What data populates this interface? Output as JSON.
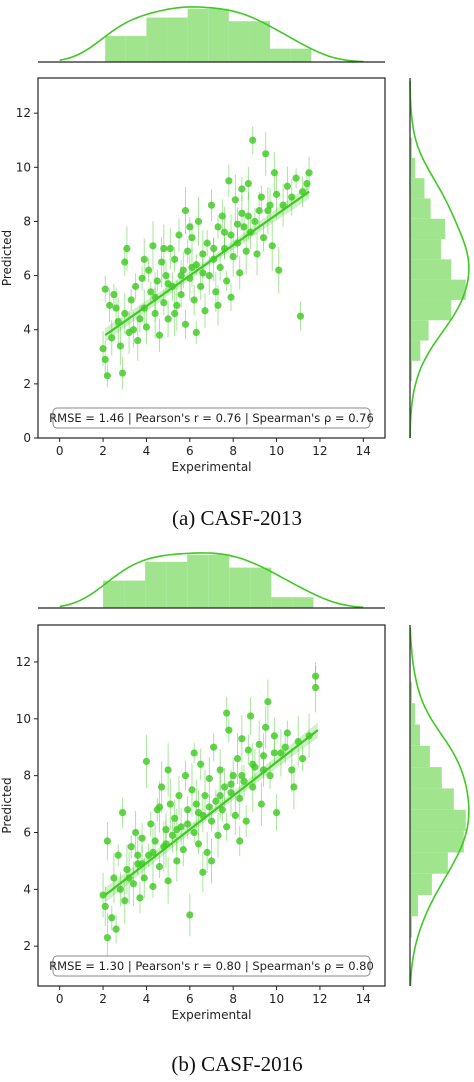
{
  "colors": {
    "accent": "#3fc923",
    "hist_fill": "#8fe07a",
    "axis": "#222222",
    "box_edge": "#888888"
  },
  "chart_data": [
    {
      "type": "scatter",
      "subtype": "jointplot-with-regression-and-marginal-histograms",
      "caption": "(a)  CASF-2013",
      "xlabel": "Experimental",
      "ylabel": "Predicted",
      "xlim": [
        -1,
        15
      ],
      "ylim": [
        0,
        13.3
      ],
      "xticks": [
        0,
        2,
        4,
        6,
        8,
        10,
        12,
        14
      ],
      "yticks": [
        0,
        2,
        4,
        6,
        8,
        10,
        12
      ],
      "grid": false,
      "stats_label": "RMSE = 1.46 | Pearson's r = 0.76 | Spearman's ρ = 0.76",
      "regression": {
        "x": [
          2.1,
          11.5
        ],
        "y": [
          3.8,
          9.1
        ]
      },
      "x_hist": {
        "bin_edges": [
          2.1,
          3.05,
          4.0,
          4.95,
          5.9,
          6.85,
          7.8,
          8.75,
          9.7,
          10.65,
          11.6
        ],
        "counts": [
          35,
          35,
          60,
          60,
          72,
          72,
          55,
          55,
          18,
          18
        ]
      },
      "y_hist": {
        "bin_edges": [
          2.1,
          2.85,
          3.6,
          4.35,
          5.1,
          5.85,
          6.6,
          7.35,
          8.1,
          8.85,
          9.6,
          10.35,
          11.1
        ],
        "counts": [
          2,
          10,
          18,
          40,
          54,
          40,
          30,
          34,
          20,
          14,
          5,
          2
        ]
      },
      "points": [
        {
          "x": 2.0,
          "y": 3.3
        },
        {
          "x": 2.1,
          "y": 2.9
        },
        {
          "x": 2.2,
          "y": 2.3
        },
        {
          "x": 2.1,
          "y": 5.5
        },
        {
          "x": 2.3,
          "y": 4.9
        },
        {
          "x": 2.4,
          "y": 3.7
        },
        {
          "x": 2.5,
          "y": 5.3
        },
        {
          "x": 2.7,
          "y": 4.3
        },
        {
          "x": 2.8,
          "y": 3.4
        },
        {
          "x": 2.9,
          "y": 2.4
        },
        {
          "x": 3.0,
          "y": 6.5
        },
        {
          "x": 3.1,
          "y": 7.0
        },
        {
          "x": 3.0,
          "y": 4.6
        },
        {
          "x": 3.3,
          "y": 5.1
        },
        {
          "x": 3.4,
          "y": 4.0
        },
        {
          "x": 3.5,
          "y": 5.6
        },
        {
          "x": 3.6,
          "y": 3.6
        },
        {
          "x": 3.8,
          "y": 5.9
        },
        {
          "x": 3.9,
          "y": 4.8
        },
        {
          "x": 4.0,
          "y": 4.1
        },
        {
          "x": 4.1,
          "y": 6.2
        },
        {
          "x": 4.2,
          "y": 5.4
        },
        {
          "x": 4.3,
          "y": 7.1
        },
        {
          "x": 4.4,
          "y": 4.6
        },
        {
          "x": 4.5,
          "y": 5.8
        },
        {
          "x": 4.6,
          "y": 3.8
        },
        {
          "x": 4.7,
          "y": 6.5
        },
        {
          "x": 4.8,
          "y": 5.0
        },
        {
          "x": 4.9,
          "y": 6.0
        },
        {
          "x": 5.0,
          "y": 4.4
        },
        {
          "x": 5.1,
          "y": 7.0
        },
        {
          "x": 5.2,
          "y": 5.6
        },
        {
          "x": 5.3,
          "y": 6.6
        },
        {
          "x": 5.4,
          "y": 4.9
        },
        {
          "x": 5.5,
          "y": 7.5
        },
        {
          "x": 5.6,
          "y": 5.3
        },
        {
          "x": 5.7,
          "y": 6.2
        },
        {
          "x": 5.8,
          "y": 4.2
        },
        {
          "x": 5.9,
          "y": 6.9
        },
        {
          "x": 6.0,
          "y": 5.9
        },
        {
          "x": 6.1,
          "y": 7.4
        },
        {
          "x": 6.2,
          "y": 5.1
        },
        {
          "x": 6.3,
          "y": 6.4
        },
        {
          "x": 6.4,
          "y": 8.0
        },
        {
          "x": 6.5,
          "y": 5.6
        },
        {
          "x": 6.6,
          "y": 6.8
        },
        {
          "x": 6.7,
          "y": 4.7
        },
        {
          "x": 6.8,
          "y": 7.2
        },
        {
          "x": 6.9,
          "y": 6.0
        },
        {
          "x": 7.0,
          "y": 8.6
        },
        {
          "x": 7.1,
          "y": 6.6
        },
        {
          "x": 7.2,
          "y": 5.4
        },
        {
          "x": 7.3,
          "y": 7.8
        },
        {
          "x": 7.4,
          "y": 6.3
        },
        {
          "x": 7.5,
          "y": 8.2
        },
        {
          "x": 7.6,
          "y": 7.0
        },
        {
          "x": 7.7,
          "y": 5.8
        },
        {
          "x": 7.8,
          "y": 9.5
        },
        {
          "x": 7.9,
          "y": 7.5
        },
        {
          "x": 8.0,
          "y": 6.7
        },
        {
          "x": 8.1,
          "y": 8.8
        },
        {
          "x": 8.2,
          "y": 7.2
        },
        {
          "x": 8.3,
          "y": 6.1
        },
        {
          "x": 8.4,
          "y": 8.3
        },
        {
          "x": 8.5,
          "y": 7.8
        },
        {
          "x": 8.6,
          "y": 6.9
        },
        {
          "x": 8.7,
          "y": 9.4
        },
        {
          "x": 8.8,
          "y": 7.6
        },
        {
          "x": 8.9,
          "y": 11.0
        },
        {
          "x": 9.0,
          "y": 8.0
        },
        {
          "x": 9.1,
          "y": 6.8
        },
        {
          "x": 9.3,
          "y": 8.9
        },
        {
          "x": 9.4,
          "y": 7.4
        },
        {
          "x": 9.5,
          "y": 10.5
        },
        {
          "x": 9.6,
          "y": 8.4
        },
        {
          "x": 9.8,
          "y": 7.1
        },
        {
          "x": 10.0,
          "y": 9.0
        },
        {
          "x": 10.1,
          "y": 6.2
        },
        {
          "x": 10.3,
          "y": 8.6
        },
        {
          "x": 10.5,
          "y": 9.3
        },
        {
          "x": 10.7,
          "y": 8.9
        },
        {
          "x": 10.9,
          "y": 9.6
        },
        {
          "x": 11.1,
          "y": 4.5
        },
        {
          "x": 11.2,
          "y": 9.1
        },
        {
          "x": 11.4,
          "y": 9.4
        },
        {
          "x": 11.5,
          "y": 9.8
        },
        {
          "x": 2.6,
          "y": 4.8
        },
        {
          "x": 3.2,
          "y": 3.9
        },
        {
          "x": 3.7,
          "y": 4.4
        },
        {
          "x": 4.4,
          "y": 5.2
        },
        {
          "x": 5.0,
          "y": 5.7
        },
        {
          "x": 5.6,
          "y": 6.0
        },
        {
          "x": 6.1,
          "y": 6.3
        },
        {
          "x": 6.6,
          "y": 6.1
        },
        {
          "x": 7.1,
          "y": 7.0
        },
        {
          "x": 7.6,
          "y": 7.6
        },
        {
          "x": 8.2,
          "y": 7.9
        },
        {
          "x": 8.7,
          "y": 8.2
        },
        {
          "x": 9.2,
          "y": 8.4
        },
        {
          "x": 9.7,
          "y": 8.6
        },
        {
          "x": 6.3,
          "y": 3.9
        },
        {
          "x": 5.3,
          "y": 4.6
        },
        {
          "x": 4.8,
          "y": 7.0
        },
        {
          "x": 7.9,
          "y": 5.2
        },
        {
          "x": 6.0,
          "y": 7.8
        },
        {
          "x": 8.4,
          "y": 9.2
        },
        {
          "x": 3.9,
          "y": 6.6
        },
        {
          "x": 9.9,
          "y": 9.8
        },
        {
          "x": 7.3,
          "y": 4.9
        },
        {
          "x": 5.8,
          "y": 8.4
        }
      ]
    },
    {
      "type": "scatter",
      "subtype": "jointplot-with-regression-and-marginal-histograms",
      "caption": "(b)  CASF-2016",
      "xlabel": "Experimental",
      "ylabel": "Predicted",
      "xlim": [
        -1,
        15
      ],
      "ylim": [
        0.6,
        13.3
      ],
      "xticks": [
        0,
        2,
        4,
        6,
        8,
        10,
        12,
        14
      ],
      "yticks": [
        2,
        4,
        6,
        8,
        10,
        12
      ],
      "grid": false,
      "stats_label": "RMSE = 1.30 | Pearson's r = 0.80 | Spearman's ρ = 0.80",
      "regression": {
        "x": [
          2.1,
          11.9
        ],
        "y": [
          3.8,
          9.6
        ]
      },
      "x_hist": {
        "bin_edges": [
          2.0,
          2.97,
          3.94,
          4.91,
          5.88,
          6.85,
          7.82,
          8.79,
          9.76,
          10.73,
          11.7
        ],
        "counts": [
          38,
          38,
          64,
          64,
          74,
          74,
          56,
          56,
          15,
          15
        ]
      },
      "y_hist": {
        "bin_edges": [
          2.3,
          3.05,
          3.8,
          4.55,
          5.3,
          6.05,
          6.8,
          7.55,
          8.3,
          9.05,
          9.8,
          10.55,
          11.3
        ],
        "counts": [
          2,
          8,
          22,
          38,
          54,
          56,
          44,
          32,
          20,
          10,
          5,
          2
        ]
      },
      "points": [
        {
          "x": 2.0,
          "y": 3.8
        },
        {
          "x": 2.1,
          "y": 3.4
        },
        {
          "x": 2.2,
          "y": 2.3
        },
        {
          "x": 2.2,
          "y": 5.7
        },
        {
          "x": 2.4,
          "y": 3.0
        },
        {
          "x": 2.5,
          "y": 4.4
        },
        {
          "x": 2.6,
          "y": 2.6
        },
        {
          "x": 2.7,
          "y": 5.2
        },
        {
          "x": 2.8,
          "y": 4.0
        },
        {
          "x": 2.9,
          "y": 6.7
        },
        {
          "x": 3.0,
          "y": 3.6
        },
        {
          "x": 3.1,
          "y": 4.7
        },
        {
          "x": 3.3,
          "y": 5.5
        },
        {
          "x": 3.4,
          "y": 4.2
        },
        {
          "x": 3.5,
          "y": 6.0
        },
        {
          "x": 3.6,
          "y": 4.9
        },
        {
          "x": 3.7,
          "y": 3.7
        },
        {
          "x": 3.8,
          "y": 5.8
        },
        {
          "x": 3.9,
          "y": 4.4
        },
        {
          "x": 4.0,
          "y": 8.5
        },
        {
          "x": 4.1,
          "y": 5.2
        },
        {
          "x": 4.2,
          "y": 6.3
        },
        {
          "x": 4.3,
          "y": 4.1
        },
        {
          "x": 4.4,
          "y": 5.7
        },
        {
          "x": 4.5,
          "y": 6.8
        },
        {
          "x": 4.6,
          "y": 4.8
        },
        {
          "x": 4.7,
          "y": 7.6
        },
        {
          "x": 4.8,
          "y": 5.5
        },
        {
          "x": 4.9,
          "y": 6.1
        },
        {
          "x": 5.0,
          "y": 4.3
        },
        {
          "x": 5.1,
          "y": 7.0
        },
        {
          "x": 5.2,
          "y": 5.9
        },
        {
          "x": 5.3,
          "y": 6.5
        },
        {
          "x": 5.4,
          "y": 5.0
        },
        {
          "x": 5.5,
          "y": 7.3
        },
        {
          "x": 5.6,
          "y": 6.2
        },
        {
          "x": 5.7,
          "y": 5.4
        },
        {
          "x": 5.8,
          "y": 8.0
        },
        {
          "x": 5.9,
          "y": 6.8
        },
        {
          "x": 6.0,
          "y": 3.1
        },
        {
          "x": 6.1,
          "y": 7.5
        },
        {
          "x": 6.2,
          "y": 6.0
        },
        {
          "x": 6.3,
          "y": 7.0
        },
        {
          "x": 6.4,
          "y": 5.6
        },
        {
          "x": 6.5,
          "y": 8.4
        },
        {
          "x": 6.6,
          "y": 6.6
        },
        {
          "x": 6.7,
          "y": 7.3
        },
        {
          "x": 6.8,
          "y": 5.3
        },
        {
          "x": 6.9,
          "y": 7.9
        },
        {
          "x": 7.0,
          "y": 6.4
        },
        {
          "x": 7.1,
          "y": 9.0
        },
        {
          "x": 7.2,
          "y": 7.1
        },
        {
          "x": 7.3,
          "y": 5.9
        },
        {
          "x": 7.4,
          "y": 8.2
        },
        {
          "x": 7.5,
          "y": 6.8
        },
        {
          "x": 7.6,
          "y": 7.6
        },
        {
          "x": 7.7,
          "y": 6.2
        },
        {
          "x": 7.8,
          "y": 9.6
        },
        {
          "x": 7.9,
          "y": 7.4
        },
        {
          "x": 8.0,
          "y": 8.0
        },
        {
          "x": 8.1,
          "y": 6.6
        },
        {
          "x": 8.2,
          "y": 8.6
        },
        {
          "x": 8.3,
          "y": 7.2
        },
        {
          "x": 8.4,
          "y": 9.3
        },
        {
          "x": 8.5,
          "y": 7.8
        },
        {
          "x": 8.6,
          "y": 6.4
        },
        {
          "x": 8.7,
          "y": 8.9
        },
        {
          "x": 8.8,
          "y": 10.1
        },
        {
          "x": 8.9,
          "y": 7.6
        },
        {
          "x": 9.0,
          "y": 8.3
        },
        {
          "x": 9.2,
          "y": 9.1
        },
        {
          "x": 9.3,
          "y": 7.0
        },
        {
          "x": 9.4,
          "y": 8.7
        },
        {
          "x": 9.5,
          "y": 9.7
        },
        {
          "x": 9.7,
          "y": 8.0
        },
        {
          "x": 9.9,
          "y": 9.4
        },
        {
          "x": 10.0,
          "y": 6.7
        },
        {
          "x": 10.2,
          "y": 8.8
        },
        {
          "x": 10.5,
          "y": 9.5
        },
        {
          "x": 10.7,
          "y": 8.2
        },
        {
          "x": 11.0,
          "y": 9.2
        },
        {
          "x": 11.2,
          "y": 8.6
        },
        {
          "x": 11.5,
          "y": 9.4
        },
        {
          "x": 11.8,
          "y": 11.5
        },
        {
          "x": 11.8,
          "y": 11.1
        },
        {
          "x": 3.2,
          "y": 4.4
        },
        {
          "x": 3.8,
          "y": 4.9
        },
        {
          "x": 4.3,
          "y": 5.3
        },
        {
          "x": 4.9,
          "y": 5.6
        },
        {
          "x": 5.4,
          "y": 6.1
        },
        {
          "x": 5.9,
          "y": 6.3
        },
        {
          "x": 6.4,
          "y": 6.7
        },
        {
          "x": 6.9,
          "y": 6.9
        },
        {
          "x": 7.4,
          "y": 7.3
        },
        {
          "x": 7.9,
          "y": 7.7
        },
        {
          "x": 8.4,
          "y": 8.0
        },
        {
          "x": 8.9,
          "y": 8.4
        },
        {
          "x": 9.4,
          "y": 8.2
        },
        {
          "x": 9.9,
          "y": 8.8
        },
        {
          "x": 10.4,
          "y": 9.0
        },
        {
          "x": 5.0,
          "y": 8.2
        },
        {
          "x": 6.6,
          "y": 4.6
        },
        {
          "x": 7.7,
          "y": 10.2
        },
        {
          "x": 8.3,
          "y": 5.7
        },
        {
          "x": 4.6,
          "y": 6.9
        },
        {
          "x": 6.2,
          "y": 8.8
        },
        {
          "x": 9.6,
          "y": 10.6
        },
        {
          "x": 3.6,
          "y": 5.2
        },
        {
          "x": 7.0,
          "y": 5.0
        },
        {
          "x": 10.8,
          "y": 7.6
        }
      ]
    }
  ]
}
